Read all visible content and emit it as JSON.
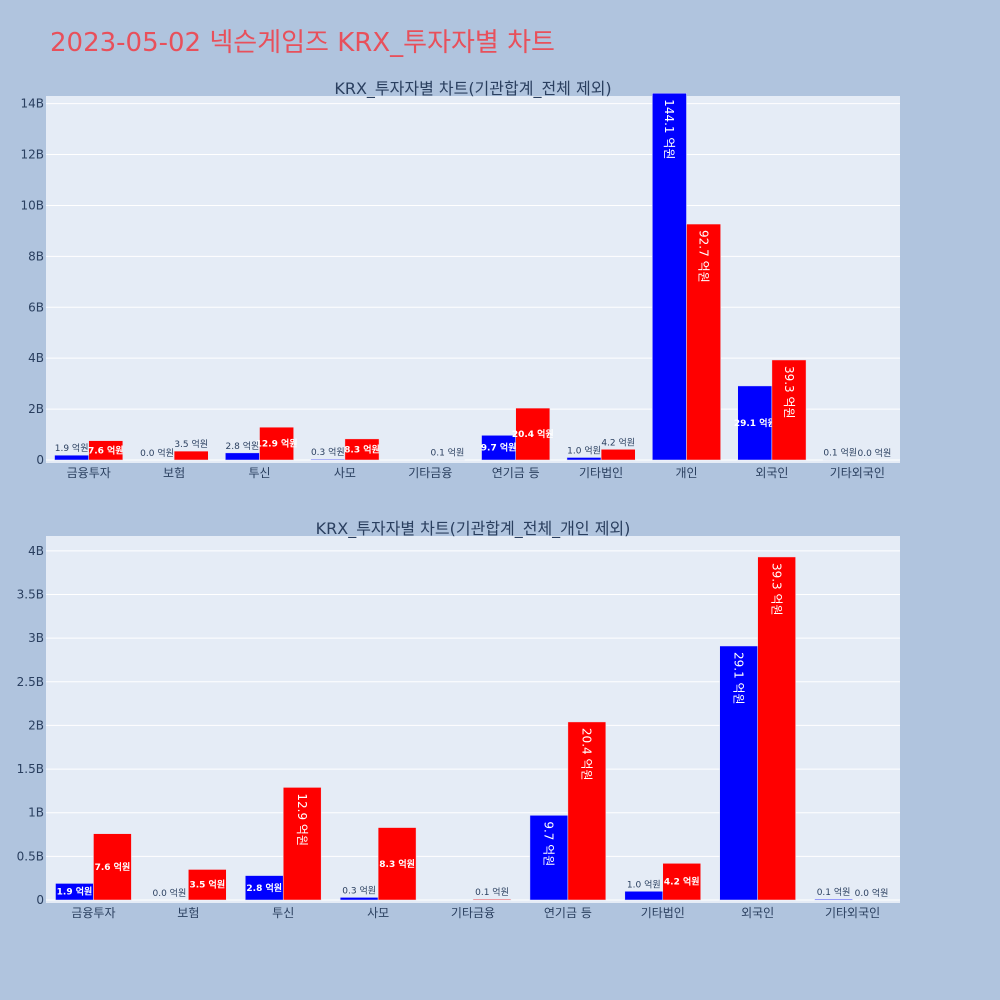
{
  "page_title": "2023-05-02 넥슨게임즈 KRX_투자자별 차트",
  "chart_data": [
    {
      "type": "bar",
      "title": "KRX_투자자별 차트(기관합계_전체 제외)",
      "categories": [
        "금융투자",
        "보험",
        "투신",
        "사모",
        "기타금융",
        "연기금 등",
        "기타법인",
        "개인",
        "외국인",
        "기타외국인"
      ],
      "ylim": [
        0,
        14.3
      ],
      "yticks": [
        0,
        2,
        4,
        6,
        8,
        10,
        12,
        14
      ],
      "ytick_labels": [
        "0",
        "2B",
        "4B",
        "6B",
        "8B",
        "10B",
        "12B",
        "14B"
      ],
      "grid": true,
      "series": [
        {
          "color": "#0000ff",
          "values": [
            0.19,
            0.0,
            0.28,
            0.03,
            0.0,
            0.97,
            0.1,
            14.41,
            2.91,
            0.01
          ],
          "labels": [
            "1.9 억원",
            "0.0 억원",
            "2.8 억원",
            "0.3 억원",
            "",
            "9.7 억원",
            "1.0 억원",
            "144.1 억원",
            "29.1 억원",
            "0.1 억원"
          ]
        },
        {
          "color": "#ff0000",
          "values": [
            0.76,
            0.35,
            1.29,
            0.83,
            0.01,
            2.04,
            0.42,
            9.27,
            3.93,
            0.0
          ],
          "labels": [
            "7.6 억원",
            "3.5 억원",
            "12.9 억원",
            "8.3 억원",
            "0.1 억원",
            "20.4 억원",
            "4.2 억원",
            "92.7 억원",
            "39.3 억원",
            "0.0 억원"
          ]
        }
      ]
    },
    {
      "type": "bar",
      "title": "KRX_투자자별 차트(기관합계_전체_개인 제외)",
      "categories": [
        "금융투자",
        "보험",
        "투신",
        "사모",
        "기타금융",
        "연기금 등",
        "기타법인",
        "외국인",
        "기타외국인"
      ],
      "ylim": [
        0,
        4.17
      ],
      "yticks": [
        0,
        0.5,
        1,
        1.5,
        2,
        2.5,
        3,
        3.5,
        4
      ],
      "ytick_labels": [
        "0",
        "0.5B",
        "1B",
        "1.5B",
        "2B",
        "2.5B",
        "3B",
        "3.5B",
        "4B"
      ],
      "grid": true,
      "series": [
        {
          "color": "#0000ff",
          "values": [
            0.19,
            0.0,
            0.28,
            0.03,
            0.0,
            0.97,
            0.1,
            2.91,
            0.01
          ],
          "labels": [
            "1.9 억원",
            "0.0 억원",
            "2.8 억원",
            "0.3 억원",
            "",
            "9.7 억원",
            "1.0 억원",
            "29.1 억원",
            "0.1 억원"
          ]
        },
        {
          "color": "#ff0000",
          "values": [
            0.76,
            0.35,
            1.29,
            0.83,
            0.01,
            2.04,
            0.42,
            3.93,
            0.0
          ],
          "labels": [
            "7.6 억원",
            "3.5 억원",
            "12.9 억원",
            "8.3 억원",
            "0.1 억원",
            "20.4 억원",
            "4.2 억원",
            "39.3 억원",
            "0.0 억원"
          ]
        }
      ]
    }
  ]
}
